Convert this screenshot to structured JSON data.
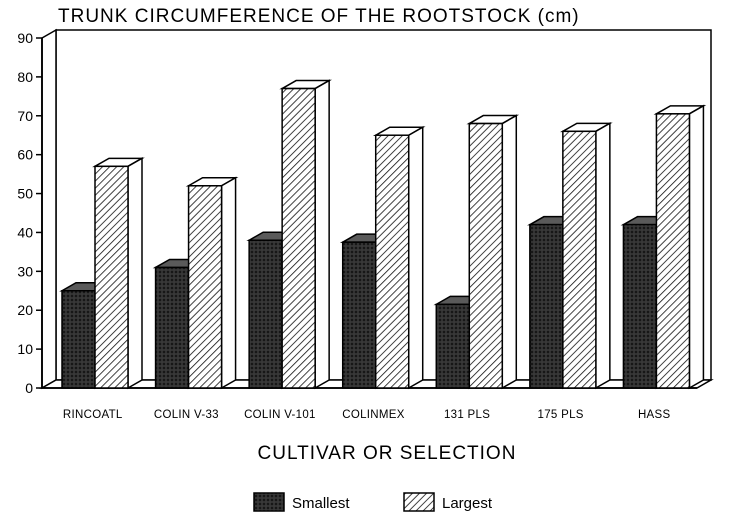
{
  "chart_data": {
    "type": "bar",
    "title": "TRUNK CIRCUMFERENCE OF THE ROOTSTOCK (cm)",
    "xlabel": "CULTIVAR OR SELECTION",
    "ylabel": "",
    "ylim": [
      0,
      90
    ],
    "yticks": [
      0,
      10,
      20,
      30,
      40,
      50,
      60,
      70,
      80,
      90
    ],
    "categories": [
      "RINCOATL",
      "COLIN V-33",
      "COLIN V-101",
      "COLINMEX",
      "131 PLS",
      "175 PLS",
      "HASS"
    ],
    "series": [
      {
        "name": "Smallest",
        "values": [
          25,
          31,
          38,
          37.5,
          21.5,
          42,
          42
        ],
        "pattern": "crosshatch-dark"
      },
      {
        "name": "Largest",
        "values": [
          57,
          52,
          77,
          65,
          68,
          66,
          70.5
        ],
        "pattern": "diagonal-hatch"
      }
    ],
    "legend_position": "bottom-center",
    "grid": false,
    "style": "3d-bars"
  }
}
